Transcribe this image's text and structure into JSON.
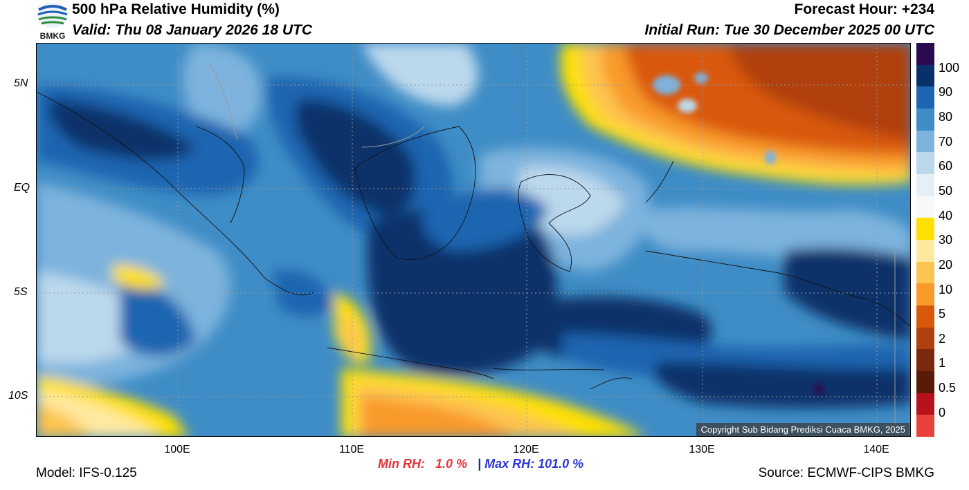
{
  "header": {
    "title": "500 hPa Relative Humidity (%)",
    "valid": "Valid: Thu 08 January 2026 18 UTC",
    "forecast_hour": "Forecast Hour: +234",
    "initial_run": "Initial Run: Tue 30 December 2025 00 UTC",
    "logo_text": "BMKG"
  },
  "map": {
    "lat_labels": [
      "5N",
      "EQ",
      "5S",
      "10S"
    ],
    "lon_labels": [
      "100E",
      "110E",
      "120E",
      "130E",
      "140E"
    ],
    "copyright": "Copyright Sub Bidang Prediksi Cuaca BMKG, 2025"
  },
  "colorbar": {
    "labels": [
      "100",
      "90",
      "80",
      "70",
      "60",
      "50",
      "40",
      "30",
      "20",
      "10",
      "5",
      "2",
      "1",
      "0.5",
      "0"
    ],
    "colors": [
      "#2b0a4f",
      "#08306b",
      "#1d65b0",
      "#3f8dc6",
      "#7db3dd",
      "#bcd8ec",
      "#e6eef6",
      "#f8f8f8",
      "#ffe000",
      "#ffe9a0",
      "#fdc44f",
      "#f99a2b",
      "#d9590c",
      "#b04010",
      "#7a2a0c",
      "#5a1a08",
      "#b5121b",
      "#e8403a"
    ]
  },
  "footer": {
    "model": "Model: IFS-0.125",
    "source": "Source: ECMWF-CIPS BMKG",
    "min_label": "Min RH:",
    "min_value": "1.0 %",
    "separator": "|",
    "max_label": "Max RH:",
    "max_value": "101.0 %"
  }
}
